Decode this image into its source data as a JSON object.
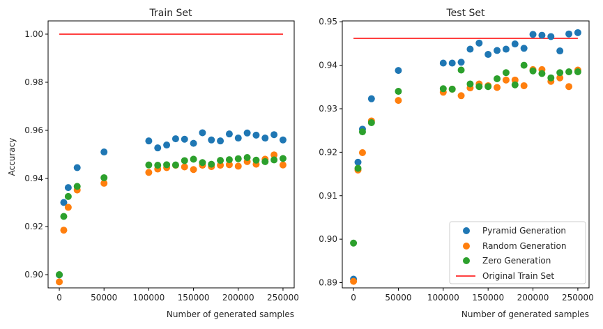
{
  "colors": {
    "pyramid": "#1f77b4",
    "random": "#ff7f0e",
    "zero": "#2ca02c",
    "original": "#ff0000"
  },
  "chart_data": [
    {
      "type": "scatter",
      "title": "Train Set",
      "xlabel": "Number of generated samples",
      "ylabel": "Accuracy",
      "xlim": [
        -12500,
        262500
      ],
      "ylim": [
        0.8945,
        1.0055
      ],
      "xticks": [
        0,
        50000,
        100000,
        150000,
        200000,
        250000
      ],
      "xtick_labels": [
        "0",
        "50000",
        "100000",
        "150000",
        "200000",
        "250000"
      ],
      "yticks": [
        0.9,
        0.92,
        0.94,
        0.96,
        0.98,
        1.0
      ],
      "ytick_labels": [
        "0.90",
        "0.92",
        "0.94",
        "0.96",
        "0.98",
        "1.00"
      ],
      "x": [
        0,
        5000,
        10000,
        20000,
        50000,
        100000,
        110000,
        120000,
        130000,
        140000,
        150000,
        160000,
        170000,
        180000,
        190000,
        200000,
        210000,
        220000,
        230000,
        240000,
        250000
      ],
      "series": [
        {
          "name": "Pyramid Generation",
          "color_key": "pyramid",
          "values": [
            0.8999,
            0.93,
            0.9362,
            0.9445,
            0.951,
            0.9556,
            0.9527,
            0.9539,
            0.9565,
            0.9563,
            0.9546,
            0.959,
            0.956,
            0.9556,
            0.9585,
            0.9568,
            0.9589,
            0.958,
            0.9568,
            0.9582,
            0.956
          ]
        },
        {
          "name": "Random Generation",
          "color_key": "random",
          "values": [
            0.897,
            0.9185,
            0.928,
            0.9352,
            0.938,
            0.9425,
            0.9439,
            0.9445,
            0.9455,
            0.9448,
            0.9437,
            0.9455,
            0.9449,
            0.9455,
            0.9457,
            0.9451,
            0.947,
            0.9459,
            0.948,
            0.9498,
            0.9456
          ]
        },
        {
          "name": "Zero Generation",
          "color_key": "zero",
          "values": [
            0.9,
            0.9242,
            0.9325,
            0.9367,
            0.9403,
            0.9456,
            0.9455,
            0.9457,
            0.9456,
            0.9474,
            0.948,
            0.9466,
            0.9459,
            0.9475,
            0.9478,
            0.9482,
            0.9487,
            0.9476,
            0.947,
            0.9477,
            0.9483
          ]
        }
      ],
      "line": {
        "name": "Original Train Set",
        "color_key": "original",
        "x": [
          0,
          250000
        ],
        "y": [
          1.0,
          1.0
        ]
      }
    },
    {
      "type": "scatter",
      "title": "Test Set",
      "xlabel": "Number of generated samples",
      "ylabel": "",
      "xlim": [
        -12500,
        262500
      ],
      "ylim": [
        0.8888,
        0.9502
      ],
      "xticks": [
        0,
        50000,
        100000,
        150000,
        200000,
        250000
      ],
      "xtick_labels": [
        "0",
        "50000",
        "100000",
        "150000",
        "200000",
        "250000"
      ],
      "yticks": [
        0.89,
        0.9,
        0.91,
        0.92,
        0.93,
        0.94,
        0.95
      ],
      "ytick_labels": [
        "0.89",
        "0.90",
        "0.91",
        "0.92",
        "0.93",
        "0.94",
        "0.95"
      ],
      "x": [
        0,
        5000,
        10000,
        20000,
        50000,
        100000,
        110000,
        120000,
        130000,
        140000,
        150000,
        160000,
        170000,
        180000,
        190000,
        200000,
        210000,
        220000,
        230000,
        240000,
        250000
      ],
      "series": [
        {
          "name": "Pyramid Generation",
          "color_key": "pyramid",
          "values": [
            0.8908,
            0.9177,
            0.9253,
            0.9323,
            0.9388,
            0.9405,
            0.9405,
            0.9407,
            0.9437,
            0.9451,
            0.9425,
            0.9434,
            0.9437,
            0.9449,
            0.9439,
            0.9471,
            0.9469,
            0.9466,
            0.9433,
            0.9472,
            0.9475
          ]
        },
        {
          "name": "Random Generation",
          "color_key": "random",
          "values": [
            0.8903,
            0.9159,
            0.9199,
            0.9272,
            0.9319,
            0.9338,
            0.9345,
            0.933,
            0.9348,
            0.9357,
            0.9353,
            0.9349,
            0.9366,
            0.9366,
            0.9353,
            0.939,
            0.939,
            0.9363,
            0.9371,
            0.9351,
            0.9389
          ]
        },
        {
          "name": "Zero Generation",
          "color_key": "zero",
          "values": [
            0.8991,
            0.9163,
            0.9247,
            0.9268,
            0.934,
            0.9346,
            0.9345,
            0.9389,
            0.9357,
            0.9351,
            0.9351,
            0.9369,
            0.9383,
            0.9355,
            0.94,
            0.9387,
            0.9381,
            0.9371,
            0.9383,
            0.9385,
            0.9385
          ]
        }
      ],
      "line": {
        "name": "Original Train Set",
        "color_key": "original",
        "x": [
          0,
          250000
        ],
        "y": [
          0.9462,
          0.9462
        ]
      },
      "legend": {
        "placement": "bottom-right",
        "entries": [
          "Pyramid Generation",
          "Random Generation",
          "Zero Generation",
          "Original Train Set"
        ]
      }
    }
  ]
}
